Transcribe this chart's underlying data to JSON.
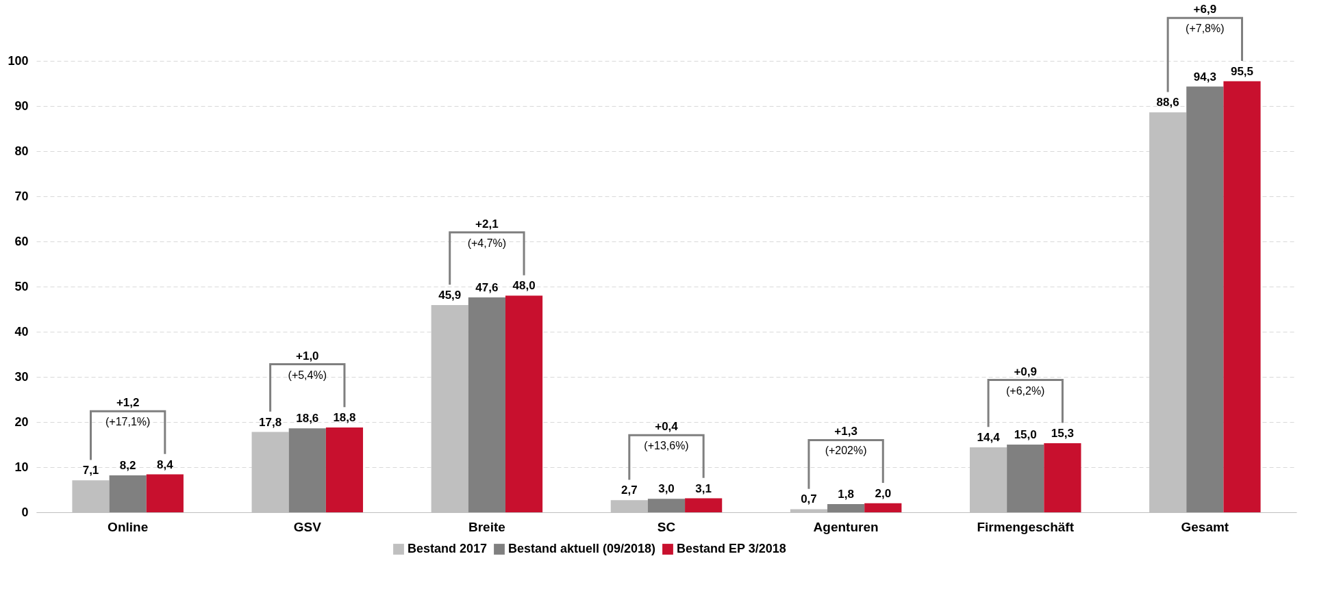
{
  "chart_data": {
    "type": "bar",
    "categories": [
      "Online",
      "GSV",
      "Breite",
      "SC",
      "Agenturen",
      "Firmengeschäft",
      "Gesamt"
    ],
    "series": [
      {
        "name": "Bestand 2017",
        "color": "#bfbfbf",
        "values": [
          7.1,
          17.8,
          45.9,
          2.7,
          0.7,
          14.4,
          88.6
        ],
        "value_labels": [
          "7,1",
          "17,8",
          "45,9",
          "2,7",
          "0,7",
          "14,4",
          "88,6"
        ]
      },
      {
        "name": "Bestand aktuell (09/2018)",
        "color": "#808080",
        "values": [
          8.2,
          18.6,
          47.6,
          3.0,
          1.8,
          15.0,
          94.3
        ],
        "value_labels": [
          "8,2",
          "18,6",
          "47,6",
          "3,0",
          "1,8",
          "15,0",
          "94,3"
        ]
      },
      {
        "name": "Bestand EP 3/2018",
        "color": "#c8102e",
        "values": [
          8.4,
          18.8,
          48.0,
          3.1,
          2.0,
          15.3,
          95.5
        ],
        "value_labels": [
          "8,4",
          "18,8",
          "48,0",
          "3,1",
          "2,0",
          "15,3",
          "95,5"
        ]
      }
    ],
    "ylim": [
      0,
      100
    ],
    "yticks": [
      0,
      10,
      20,
      30,
      40,
      50,
      60,
      70,
      80,
      90,
      100
    ],
    "grid": "y",
    "legend": "bottom",
    "annotations": [
      "+1,2",
      "(+17,1%)",
      "+1,0",
      "(+5,4%)",
      "+2,1",
      "(+4,7%)",
      "+0,4",
      "(+13,6%)",
      "+1,3",
      "(+202%)",
      "+0,9",
      "(+6,2%)",
      "+6,9",
      "(+7,8%)"
    ]
  }
}
